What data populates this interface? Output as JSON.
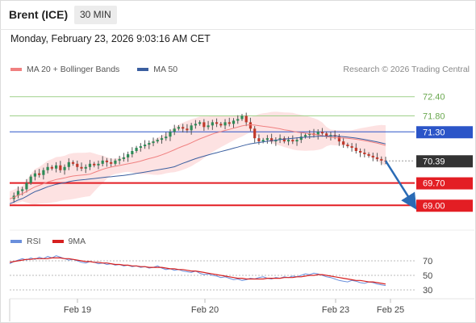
{
  "header": {
    "instrument": "Brent (ICE)",
    "timeframe": "30 MIN",
    "datetime": "Monday, February 23, 2026 9:03:16 AM CET"
  },
  "legend": {
    "bollinger_label": "MA 20 + Bollinger Bands",
    "ma50_label": "MA 50",
    "credit": "Research © 2026 Trading Central",
    "rsi_label": "RSI",
    "rsi_ma_label": "9MA"
  },
  "colors": {
    "bollinger": "#f08080",
    "ma50": "#3b5fa0",
    "resistance": "#9fd08a",
    "pivot": "#2b55c8",
    "support": "#e31e24",
    "current": "#333333",
    "rsi": "#6a8fdc",
    "rsi_ma": "#d62020",
    "arrow": "#2a6bb5"
  },
  "chart_data": [
    {
      "type": "candlestick",
      "ylim": [
        68.4,
        73.0
      ],
      "x_labels": [
        "Feb 19",
        "Feb 20",
        "Feb 23",
        "Feb 25"
      ],
      "levels": [
        {
          "value": 72.4,
          "label": "72.40",
          "kind": "resistance"
        },
        {
          "value": 71.8,
          "label": "71.80",
          "kind": "resistance"
        },
        {
          "value": 71.3,
          "label": "71.30",
          "kind": "pivot"
        },
        {
          "value": 70.39,
          "label": "70.39",
          "kind": "current"
        },
        {
          "value": 69.7,
          "label": "69.70",
          "kind": "support"
        },
        {
          "value": 69.0,
          "label": "69.00",
          "kind": "support"
        }
      ],
      "close_series": [
        69.2,
        69.3,
        69.45,
        69.5,
        69.7,
        69.9,
        70.0,
        69.95,
        70.1,
        70.2,
        70.15,
        70.25,
        70.1,
        70.2,
        70.35,
        70.3,
        70.2,
        70.15,
        70.2,
        70.3,
        70.25,
        70.3,
        70.4,
        70.35,
        70.3,
        70.4,
        70.45,
        70.5,
        70.6,
        70.7,
        70.8,
        70.85,
        70.9,
        70.95,
        71.0,
        71.05,
        71.1,
        71.15,
        71.3,
        71.4,
        71.45,
        71.4,
        71.35,
        71.5,
        71.55,
        71.6,
        71.45,
        71.5,
        71.6,
        71.55,
        71.5,
        71.6,
        71.55,
        71.65,
        71.7,
        71.8,
        71.6,
        71.4,
        71.1,
        71.0,
        71.05,
        71.1,
        71.0,
        71.05,
        71.1,
        71.0,
        71.05,
        71.0,
        71.05,
        71.15,
        71.2,
        71.25,
        71.2,
        71.3,
        71.25,
        71.15,
        71.2,
        71.15,
        71.0,
        70.9,
        70.85,
        70.8,
        70.7,
        70.65,
        70.6,
        70.55,
        70.5,
        70.45,
        70.4,
        70.39
      ],
      "projection": {
        "from": 70.39,
        "to": 69.0
      }
    },
    {
      "type": "line",
      "name": "RSI",
      "ylim": [
        20,
        90
      ],
      "y_ticks": [
        70,
        50,
        30
      ],
      "rsi": [
        66,
        69,
        71,
        73,
        71,
        74,
        72,
        75,
        73,
        76,
        74,
        77,
        75,
        73,
        71,
        72,
        70,
        68,
        67,
        69,
        68,
        66,
        67,
        65,
        66,
        64,
        65,
        63,
        64,
        62,
        63,
        61,
        62,
        60,
        61,
        63,
        60,
        58,
        59,
        57,
        58,
        56,
        55,
        54,
        56,
        53,
        51,
        52,
        50,
        49,
        47,
        48,
        46,
        44,
        45,
        43,
        44,
        46,
        45,
        47,
        48,
        46,
        45,
        47,
        46,
        48,
        47,
        49,
        48,
        50,
        52,
        51,
        53,
        52,
        50,
        48,
        47,
        45,
        43,
        42,
        41,
        43,
        42,
        40,
        39,
        41,
        40,
        38,
        37,
        36
      ],
      "rsi_ma": [
        68,
        69,
        70,
        71,
        72,
        72,
        73,
        73,
        73,
        73,
        74,
        74,
        74,
        73,
        73,
        72,
        71,
        70,
        69,
        69,
        68,
        68,
        67,
        67,
        66,
        65,
        65,
        64,
        64,
        63,
        63,
        62,
        62,
        61,
        61,
        61,
        61,
        60,
        59,
        59,
        58,
        58,
        57,
        56,
        56,
        55,
        54,
        53,
        52,
        51,
        50,
        49,
        48,
        47,
        46,
        46,
        45,
        45,
        45,
        45,
        45,
        46,
        46,
        46,
        46,
        47,
        47,
        47,
        48,
        48,
        49,
        50,
        50,
        51,
        51,
        50,
        49,
        48,
        47,
        46,
        45,
        44,
        43,
        43,
        42,
        41,
        41,
        40,
        39,
        38
      ]
    }
  ]
}
